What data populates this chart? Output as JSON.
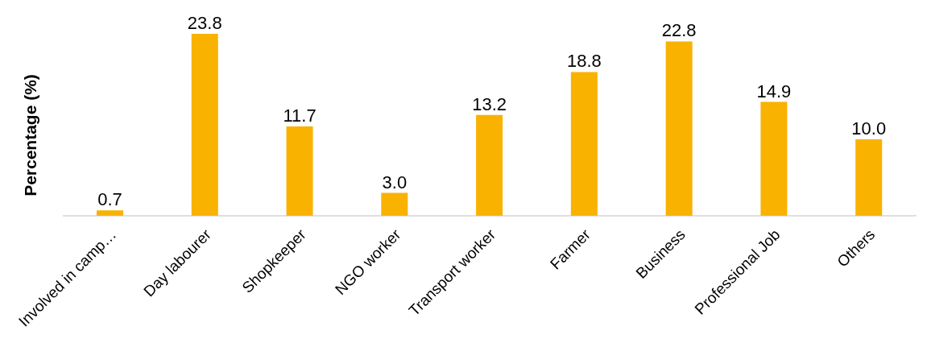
{
  "chart_data": {
    "type": "bar",
    "ylabel": "Percentage (%)",
    "categories": [
      "Involved in camp…",
      "Day labourer",
      "Shopkeeper",
      "NGO worker",
      "Transport worker",
      "Farmer",
      "Business",
      "Professional Job",
      "Others"
    ],
    "values": [
      0.7,
      23.8,
      11.7,
      3.0,
      13.2,
      18.8,
      22.8,
      14.9,
      10.0
    ],
    "value_labels": [
      "0.7",
      "23.8",
      "11.7",
      "3.0",
      "13.2",
      "18.8",
      "22.8",
      "14.9",
      "10.0"
    ],
    "color": "#f9b200",
    "grid": false,
    "legend": false
  }
}
